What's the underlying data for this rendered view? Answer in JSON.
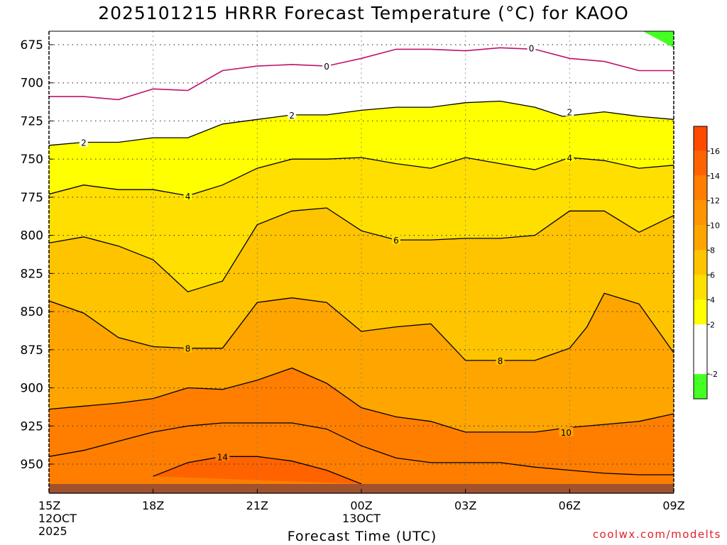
{
  "chart_data": {
    "type": "contour",
    "title": "2025101215 HRRR Forecast Temperature (°C) for KAOO",
    "xlabel": "Forecast Time (UTC)",
    "ylabel": "",
    "x_ticks": [
      "15Z",
      "18Z",
      "21Z",
      "00Z",
      "03Z",
      "06Z",
      "09Z"
    ],
    "x_tick_sublabels": [
      {
        "tick": "15Z",
        "lines": [
          "12OCT",
          "2025"
        ]
      },
      {
        "tick": "00Z",
        "lines": [
          "13OCT"
        ]
      }
    ],
    "x_hours": [
      0,
      3,
      6,
      9,
      12,
      15,
      18
    ],
    "xlim": [
      0,
      18
    ],
    "y_ticks": [
      675,
      700,
      725,
      750,
      775,
      800,
      825,
      850,
      875,
      900,
      925,
      950
    ],
    "ylim": [
      670,
      965
    ],
    "y_inverted": true,
    "grid": true,
    "colorbar": {
      "levels": [
        -4,
        -2,
        0,
        2,
        4,
        6,
        8,
        10,
        12,
        14,
        16,
        18
      ],
      "colors": [
        "#44ff22",
        "#ffffff",
        "#ffffff",
        "#ffff00",
        "#ffdf00",
        "#ffc400",
        "#ffa500",
        "#ff9400",
        "#ff7e00",
        "#ff6300",
        "#ff4a00"
      ],
      "tick_labels": [
        "-2",
        "2",
        "4",
        "6",
        "8",
        "10",
        "12",
        "14",
        "16"
      ]
    },
    "contours": [
      {
        "value": 0,
        "color": "#c0106a",
        "points": [
          [
            0,
            709
          ],
          [
            1,
            709
          ],
          [
            2,
            711
          ],
          [
            3,
            704
          ],
          [
            4,
            705
          ],
          [
            5,
            692
          ],
          [
            6,
            689
          ],
          [
            7,
            688
          ],
          [
            8,
            689
          ],
          [
            9,
            684
          ],
          [
            10,
            678
          ],
          [
            11,
            678
          ],
          [
            12,
            679
          ],
          [
            13,
            677
          ],
          [
            14,
            678
          ],
          [
            15,
            684
          ],
          [
            16,
            686
          ],
          [
            17,
            692
          ],
          [
            18,
            692
          ]
        ]
      },
      {
        "value": 2,
        "color": "#000000",
        "points": [
          [
            0,
            741
          ],
          [
            1,
            739
          ],
          [
            2,
            739
          ],
          [
            3,
            736
          ],
          [
            4,
            736
          ],
          [
            5,
            727
          ],
          [
            6,
            724
          ],
          [
            7,
            721
          ],
          [
            8,
            721
          ],
          [
            9,
            718
          ],
          [
            10,
            716
          ],
          [
            11,
            716
          ],
          [
            12,
            713
          ],
          [
            13,
            712
          ],
          [
            14,
            716
          ],
          [
            14.8,
            722
          ],
          [
            16,
            719
          ],
          [
            17,
            722
          ],
          [
            18,
            724
          ]
        ]
      },
      {
        "value": 4,
        "color": "#000000",
        "points": [
          [
            0,
            773
          ],
          [
            1,
            767
          ],
          [
            2,
            770
          ],
          [
            3,
            770
          ],
          [
            4,
            774
          ],
          [
            5,
            767
          ],
          [
            6,
            756
          ],
          [
            7,
            750
          ],
          [
            8,
            750
          ],
          [
            9,
            749
          ],
          [
            10,
            753
          ],
          [
            11,
            756
          ],
          [
            12,
            749
          ],
          [
            13,
            753
          ],
          [
            14,
            757
          ],
          [
            15,
            749
          ],
          [
            16,
            751
          ],
          [
            17,
            756
          ],
          [
            18,
            754
          ]
        ]
      },
      {
        "value": 6,
        "color": "#000000",
        "points": [
          [
            0,
            805
          ],
          [
            1,
            801
          ],
          [
            2,
            807
          ],
          [
            3,
            816
          ],
          [
            4,
            837
          ],
          [
            5,
            830
          ],
          [
            6,
            793
          ],
          [
            7,
            784
          ],
          [
            8,
            782
          ],
          [
            9,
            797
          ],
          [
            10,
            803
          ],
          [
            11,
            803
          ],
          [
            12,
            802
          ],
          [
            13,
            802
          ],
          [
            14,
            800
          ],
          [
            15,
            784
          ],
          [
            16,
            784
          ],
          [
            17,
            798
          ],
          [
            18,
            787
          ]
        ]
      },
      {
        "value": 8,
        "color": "#000000",
        "points": [
          [
            0,
            843
          ],
          [
            1,
            851
          ],
          [
            2,
            867
          ],
          [
            3,
            873
          ],
          [
            4,
            874
          ],
          [
            5,
            874
          ],
          [
            6,
            844
          ],
          [
            7,
            841
          ],
          [
            8,
            844
          ],
          [
            9,
            863
          ],
          [
            10,
            860
          ],
          [
            11,
            858
          ],
          [
            12,
            882
          ],
          [
            13,
            882
          ],
          [
            14,
            882
          ],
          [
            15,
            874
          ],
          [
            15.5,
            860
          ],
          [
            16,
            838
          ],
          [
            17,
            845
          ],
          [
            18,
            877
          ]
        ]
      },
      {
        "value": 10,
        "color": "#000000",
        "points": [
          [
            0,
            914
          ],
          [
            1,
            912
          ],
          [
            2,
            910
          ],
          [
            3,
            907
          ],
          [
            4,
            900
          ],
          [
            5,
            901
          ],
          [
            6,
            895
          ],
          [
            7,
            887
          ],
          [
            8,
            897
          ],
          [
            9,
            913
          ],
          [
            10,
            919
          ],
          [
            11,
            922
          ],
          [
            12,
            929
          ],
          [
            13,
            929
          ],
          [
            14,
            929
          ],
          [
            15,
            926
          ],
          [
            16,
            924
          ],
          [
            17,
            922
          ],
          [
            18,
            917
          ]
        ]
      },
      {
        "value": 12,
        "color": "#000000",
        "points": [
          [
            0,
            945
          ],
          [
            1,
            941
          ],
          [
            2,
            935
          ],
          [
            3,
            929
          ],
          [
            4,
            925
          ],
          [
            5,
            923
          ],
          [
            6,
            923
          ],
          [
            7,
            923
          ],
          [
            8,
            927
          ],
          [
            9,
            938
          ],
          [
            10,
            946
          ],
          [
            11,
            949
          ],
          [
            12,
            949
          ],
          [
            13,
            949
          ],
          [
            14,
            952
          ],
          [
            15,
            954
          ],
          [
            16,
            956
          ],
          [
            17,
            957
          ],
          [
            18,
            957
          ]
        ]
      },
      {
        "value": 14,
        "color": "#000000",
        "points": [
          [
            3,
            958
          ],
          [
            4,
            949
          ],
          [
            5,
            945
          ],
          [
            6,
            945
          ],
          [
            7,
            948
          ],
          [
            8,
            954
          ],
          [
            9,
            963
          ]
        ]
      }
    ],
    "contour_labels": [
      {
        "value": "0",
        "x": 8,
        "y": 689
      },
      {
        "value": "0",
        "x": 13.9,
        "y": 677
      },
      {
        "value": "2",
        "x": 1,
        "y": 739
      },
      {
        "value": "2",
        "x": 7,
        "y": 721
      },
      {
        "value": "2",
        "x": 15,
        "y": 719
      },
      {
        "value": "4",
        "x": 4,
        "y": 774
      },
      {
        "value": "4",
        "x": 15,
        "y": 749
      },
      {
        "value": "6",
        "x": 10,
        "y": 803
      },
      {
        "value": "8",
        "x": 4,
        "y": 874
      },
      {
        "value": "8",
        "x": 13,
        "y": 882
      },
      {
        "value": "10",
        "x": 14.9,
        "y": 929
      },
      {
        "value": "14",
        "x": 5,
        "y": 945
      }
    ],
    "cold_patch": {
      "value": "below -2",
      "color": "#44ff22"
    },
    "ground_color": "#a0522d"
  },
  "credit": "coolwx.com/modelts"
}
